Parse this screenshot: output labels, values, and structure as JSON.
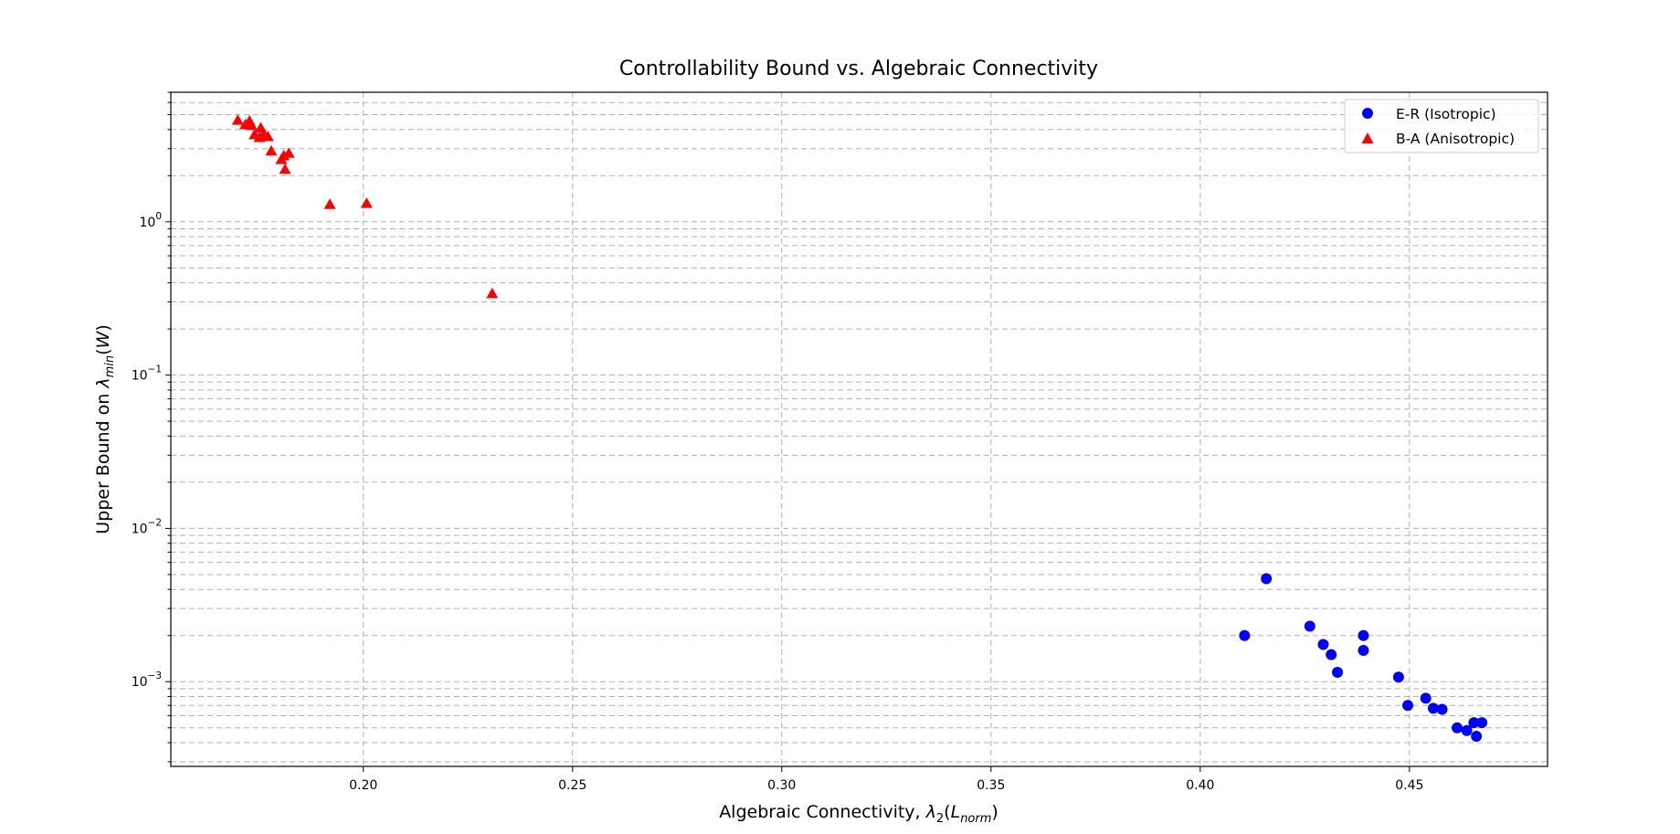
{
  "chart_data": {
    "type": "scatter",
    "title": "Controllability Bound vs. Algebraic Connectivity",
    "xlabel": {
      "main": "Algebraic Connectivity, ",
      "sym": "λ",
      "sub": "2",
      "open": "(",
      "arg": "L",
      "argsub": "norm",
      "close": ")"
    },
    "ylabel": {
      "main": "Upper Bound on ",
      "sym": "λ",
      "sub": "min",
      "open": "(",
      "arg": "W",
      "close": ")"
    },
    "xlim": [
      0.154,
      0.483
    ],
    "ylim": [
      0.00028,
      7.0
    ],
    "yscale": "log",
    "grid": true,
    "grid_style": "dashed",
    "x_ticks": [
      "0.20",
      "0.25",
      "0.30",
      "0.35",
      "0.40",
      "0.45"
    ],
    "y_ticks": [
      {
        "base": "10",
        "exp": "0",
        "value": 1
      },
      {
        "base": "10",
        "exp": "−1",
        "value": 0.1
      },
      {
        "base": "10",
        "exp": "−2",
        "value": 0.01
      },
      {
        "base": "10",
        "exp": "−3",
        "value": 0.001
      }
    ],
    "legend_position": "top-right",
    "series": [
      {
        "name": "E-R (Isotropic)",
        "marker": "circle",
        "color": "#0000ff",
        "points": [
          [
            0.4158,
            0.0047
          ],
          [
            0.4106,
            0.002
          ],
          [
            0.4262,
            0.0023
          ],
          [
            0.4294,
            0.00175
          ],
          [
            0.4313,
            0.0015
          ],
          [
            0.4328,
            0.00115
          ],
          [
            0.439,
            0.002
          ],
          [
            0.439,
            0.0016
          ],
          [
            0.4474,
            0.00107
          ],
          [
            0.4496,
            0.0007
          ],
          [
            0.4539,
            0.00078
          ],
          [
            0.4557,
            0.00067
          ],
          [
            0.4578,
            0.00066
          ],
          [
            0.4614,
            0.0005
          ],
          [
            0.4637,
            0.00048
          ],
          [
            0.4654,
            0.00054
          ],
          [
            0.466,
            0.00044
          ],
          [
            0.4673,
            0.00054
          ]
        ]
      },
      {
        "name": "B-A (Anisotropic)",
        "marker": "triangle",
        "color": "#ff0000",
        "points": [
          [
            0.17,
            4.6
          ],
          [
            0.1718,
            4.3
          ],
          [
            0.1728,
            4.55
          ],
          [
            0.1733,
            4.25
          ],
          [
            0.174,
            3.7
          ],
          [
            0.1752,
            3.55
          ],
          [
            0.1755,
            4.1
          ],
          [
            0.1762,
            3.7
          ],
          [
            0.1772,
            3.6
          ],
          [
            0.178,
            2.9
          ],
          [
            0.1804,
            2.55
          ],
          [
            0.181,
            2.7
          ],
          [
            0.1813,
            2.2
          ],
          [
            0.1822,
            2.8
          ],
          [
            0.192,
            1.3
          ],
          [
            0.2008,
            1.32
          ],
          [
            0.2308,
            0.34
          ]
        ]
      }
    ]
  }
}
